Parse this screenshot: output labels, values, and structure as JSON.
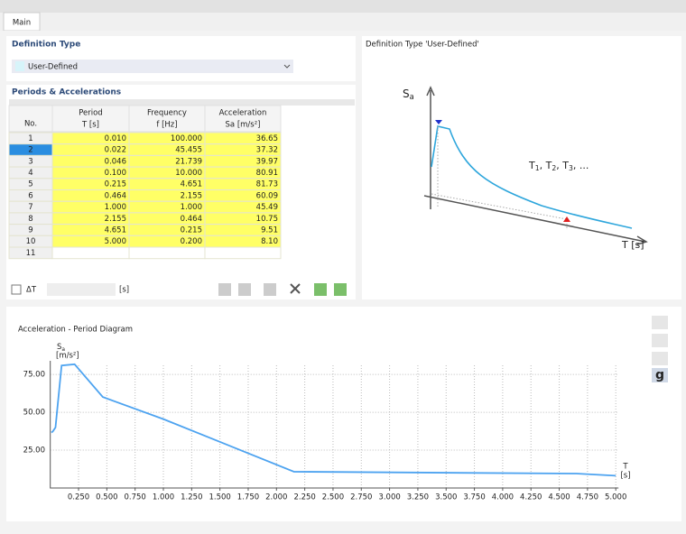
{
  "tabs": [
    "Main"
  ],
  "definition_type": {
    "label": "Definition Type",
    "value": "User-Defined"
  },
  "table": {
    "title": "Periods & Accelerations",
    "columns": [
      {
        "title": "No."
      },
      {
        "title": "Period",
        "unit": "T [s]"
      },
      {
        "title": "Frequency",
        "unit": "f [Hz]"
      },
      {
        "title": "Acceleration",
        "unit": "Sa [m/s²]"
      }
    ],
    "rows": [
      [
        "1",
        "0.010",
        "100.000",
        "36.65"
      ],
      [
        "2",
        "0.022",
        "45.455",
        "37.32"
      ],
      [
        "3",
        "0.046",
        "21.739",
        "39.97"
      ],
      [
        "4",
        "0.100",
        "10.000",
        "80.91"
      ],
      [
        "5",
        "0.215",
        "4.651",
        "81.73"
      ],
      [
        "6",
        "0.464",
        "2.155",
        "60.09"
      ],
      [
        "7",
        "1.000",
        "1.000",
        "45.49"
      ],
      [
        "8",
        "2.155",
        "0.464",
        "10.75"
      ],
      [
        "9",
        "4.651",
        "0.215",
        "9.51"
      ],
      [
        "10",
        "5.000",
        "0.200",
        "8.10"
      ],
      [
        "11"
      ]
    ]
  },
  "delta_t": {
    "label": "ΔT",
    "unit": "[s]"
  },
  "schematic": {
    "title": "Definition Type 'User-Defined'",
    "y_axis": [
      "S",
      "a"
    ],
    "periods": [
      "T",
      "1",
      ", T",
      "2",
      ", T",
      "3",
      ", ..."
    ],
    "x_axis": "T [s]"
  },
  "chart_data": {
    "type": "line",
    "title": "Acceleration - Period Diagram",
    "y_label": [
      "S",
      "a"
    ],
    "y_unit": "[m/s²]",
    "x_label": "T",
    "x_unit": "[s]",
    "x": [
      0.01,
      0.022,
      0.046,
      0.1,
      0.215,
      0.464,
      1.0,
      2.155,
      4.651,
      5.0
    ],
    "values": [
      36.65,
      37.32,
      39.97,
      80.91,
      81.73,
      60.09,
      45.49,
      10.75,
      9.51,
      8.1
    ],
    "color": "#4da3f0",
    "grid": true,
    "xlim": [
      0,
      5.0
    ],
    "ylim": [
      0,
      84
    ],
    "xticks": [
      {
        "value": 0.25,
        "label": "0.250"
      },
      {
        "value": 0.5,
        "label": "0.500"
      },
      {
        "value": 0.75,
        "label": "0.750"
      },
      {
        "value": 1.0,
        "label": "1.000"
      },
      {
        "value": 1.25,
        "label": "1.250"
      },
      {
        "value": 1.5,
        "label": "1.500"
      },
      {
        "value": 1.75,
        "label": "1.750"
      },
      {
        "value": 2.0,
        "label": "2.000"
      },
      {
        "value": 2.25,
        "label": "2.250"
      },
      {
        "value": 2.5,
        "label": "2.500"
      },
      {
        "value": 2.75,
        "label": "2.750"
      },
      {
        "value": 3.0,
        "label": "3.000"
      },
      {
        "value": 3.25,
        "label": "3.250"
      },
      {
        "value": 3.5,
        "label": "3.500"
      },
      {
        "value": 3.75,
        "label": "3.750"
      },
      {
        "value": 4.0,
        "label": "4.000"
      },
      {
        "value": 4.25,
        "label": "4.250"
      },
      {
        "value": 4.5,
        "label": "4.500"
      },
      {
        "value": 4.75,
        "label": "4.750"
      },
      {
        "value": 5.0,
        "label": "5.000"
      }
    ],
    "yticks": [
      {
        "value": 25,
        "label": "25.00"
      },
      {
        "value": 50,
        "label": "50.00"
      },
      {
        "value": 75,
        "label": "75.00"
      }
    ]
  },
  "toolbar": {
    "g_button": "g"
  }
}
